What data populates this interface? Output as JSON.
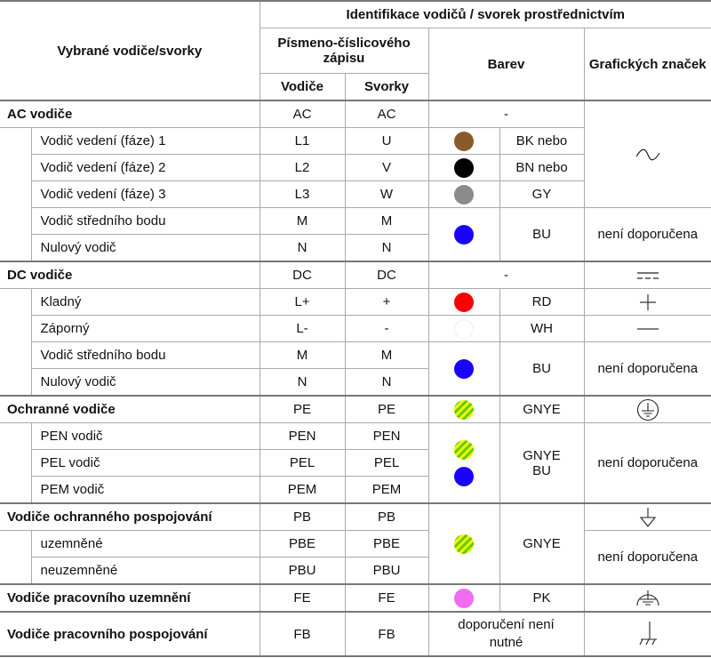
{
  "header": {
    "selected": "Vybrané vodiče/svorky",
    "identification": "Identifikace vodičů / svorek prostřednictvím",
    "alnum": "Písmeno-číslicového zápisu",
    "colors": "Barev",
    "symbols": "Grafických značek",
    "conductors": "Vodiče",
    "terminals": "Svorky"
  },
  "rows": {
    "ac": {
      "label": "AC vodiče",
      "c": "AC",
      "t": "AC",
      "color": "-",
      "symbol_icon": "sine-wave-icon"
    },
    "l1": {
      "label": "Vodič vedení (fáze) 1",
      "c": "L1",
      "t": "U",
      "code": "BK nebo",
      "hex": "#8b5a2b"
    },
    "l2": {
      "label": "Vodič vedení (fáze) 2",
      "c": "L2",
      "t": "V",
      "code": "BN nebo",
      "hex": "#000000"
    },
    "l3": {
      "label": "Vodič vedení (fáze) 3",
      "c": "L3",
      "t": "W",
      "code": "GY",
      "hex": "#8a8a8a"
    },
    "acm": {
      "label": "Vodič středního bodu",
      "c": "M",
      "t": "M",
      "code": "BU",
      "hex": "#1a00ff",
      "symbol": "není doporučena"
    },
    "acn": {
      "label": "Nulový vodič",
      "c": "N",
      "t": "N"
    },
    "dc": {
      "label": "DC vodiče",
      "c": "DC",
      "t": "DC",
      "color": "-",
      "symbol_icon": "dc-symbol-icon"
    },
    "pos": {
      "label": "Kladný",
      "c": "L+",
      "t": "+",
      "code": "RD",
      "hex": "#ff0000",
      "symbol_icon": "plus-icon"
    },
    "neg": {
      "label": "Záporný",
      "c": "L-",
      "t": "-",
      "code": "WH",
      "hex": "#ffffff",
      "symbol_icon": "minus-icon"
    },
    "dcm": {
      "label": "Vodič středního bodu",
      "c": "M",
      "t": "M",
      "code": "BU",
      "hex": "#1a00ff",
      "symbol": "není doporučena"
    },
    "dcn": {
      "label": "Nulový vodič",
      "c": "N",
      "t": "N"
    },
    "pe": {
      "label": "Ochranné vodiče",
      "c": "PE",
      "t": "PE",
      "code": "GNYE",
      "symbol_icon": "protective-earth-icon"
    },
    "pen": {
      "label": "PEN vodič",
      "c": "PEN",
      "t": "PEN",
      "code1": "GNYE",
      "code2": "BU",
      "symbol": "není doporučena"
    },
    "pel": {
      "label": "PEL vodič",
      "c": "PEL",
      "t": "PEL"
    },
    "pem": {
      "label": "PEM vodič",
      "c": "PEM",
      "t": "PEM"
    },
    "pb": {
      "label": "Vodiče ochranného pospojování",
      "c": "PB",
      "t": "PB",
      "code": "GNYE",
      "symbol_icon": "equipotential-icon"
    },
    "pbe": {
      "label": "uzemněné",
      "c": "PBE",
      "t": "PBE",
      "symbol": "není doporučena"
    },
    "pbu": {
      "label": "neuzemněné",
      "c": "PBU",
      "t": "PBU"
    },
    "fe": {
      "label": "Vodiče pracovního uzemnění",
      "c": "FE",
      "t": "FE",
      "code": "PK",
      "hex": "#f06cf0",
      "symbol_icon": "functional-earth-icon"
    },
    "fb": {
      "label": "Vodiče pracovního pospojování",
      "c": "FB",
      "t": "FB",
      "color": "doporučení není nutné",
      "symbol_icon": "chassis-icon"
    }
  }
}
